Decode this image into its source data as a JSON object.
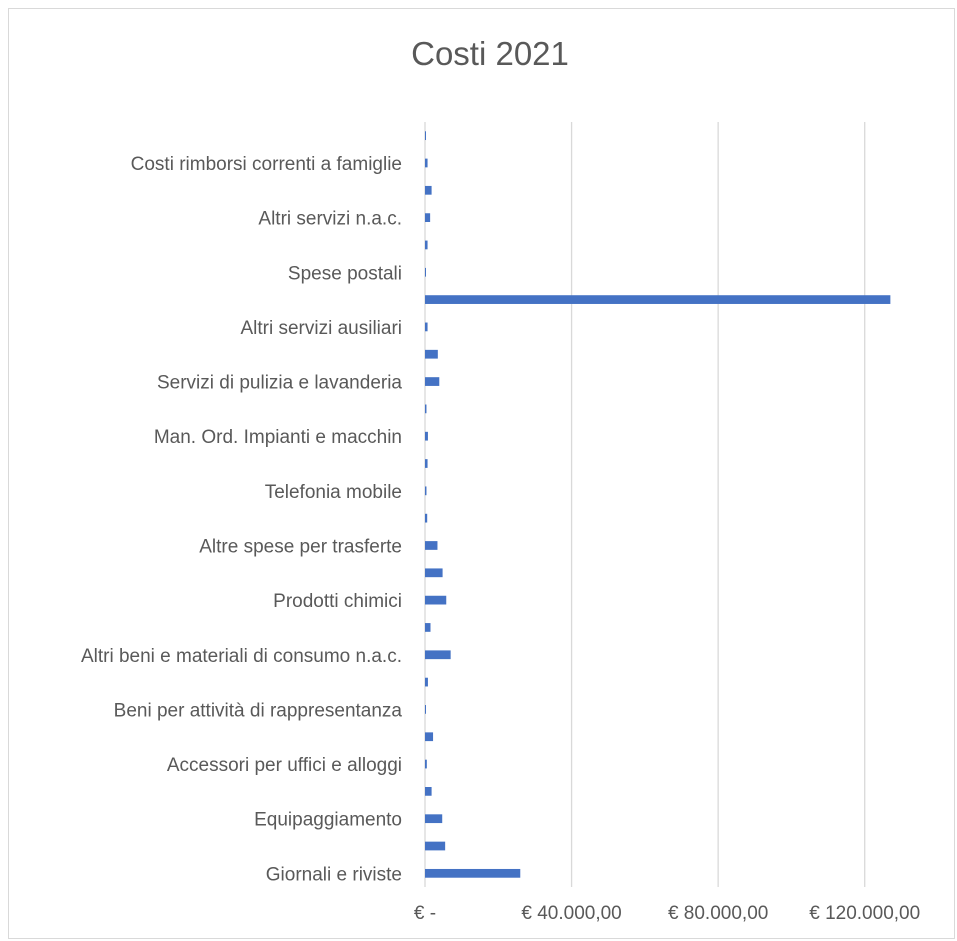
{
  "chart_data": {
    "type": "bar",
    "orientation": "horizontal",
    "title": "Costi 2021",
    "xlabel": "",
    "ylabel": "",
    "xlim": [
      0,
      140000
    ],
    "grid": true,
    "legend": "none",
    "bar_color": "#4472c4",
    "categories": [
      "Giornali e riviste",
      "",
      "Equipaggiamento",
      "",
      "Accessori per uffici e alloggi",
      "",
      "Beni per attività di rappresentanza",
      "",
      "Altri beni e materiali di consumo n.a.c.",
      "",
      "Prodotti chimici",
      "",
      "Altre spese per trasferte",
      "",
      "Telefonia mobile",
      "",
      "Man. Ord. Impianti e macchin",
      "",
      "Servizi di pulizia e lavanderia",
      "",
      "Altri servizi ausiliari",
      "",
      "Spese postali",
      "",
      "Altri servizi n.a.c.",
      "",
      "Costi rimborsi correnti a famiglie",
      ""
    ],
    "values": [
      26000,
      5500,
      4700,
      1800,
      500,
      2200,
      100,
      800,
      7000,
      1500,
      5800,
      4800,
      3400,
      600,
      400,
      700,
      800,
      400,
      3900,
      3500,
      700,
      127000,
      200,
      700,
      1400,
      1800,
      700,
      200
    ],
    "x_ticks": [
      {
        "value": 0,
        "label": "€ -"
      },
      {
        "value": 40000,
        "label": "€ 40.000,00"
      },
      {
        "value": 80000,
        "label": "€ 80.000,00"
      },
      {
        "value": 120000,
        "label": "€ 120.000,00"
      }
    ]
  }
}
